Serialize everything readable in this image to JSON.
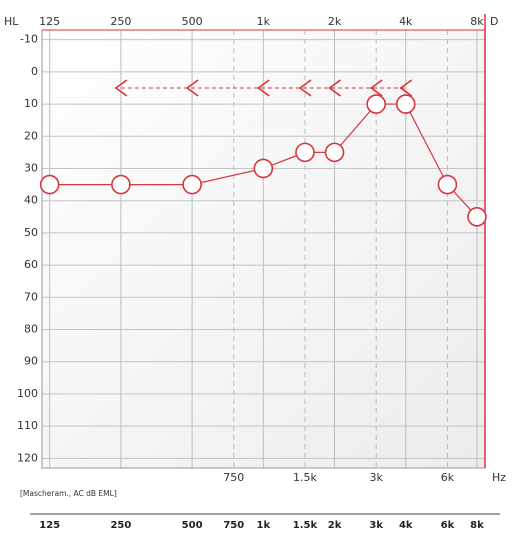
{
  "chart_data": {
    "type": "audiogram",
    "y_axis_label": "HL",
    "side_label": "D",
    "x_unit_label": "Hz",
    "legend_note": "[Mascheram., AC dB EML]",
    "xscale": "log",
    "xlim": [
      116,
      8650
    ],
    "ylim": [
      -13,
      123
    ],
    "y_inverted": true,
    "grid": true,
    "xticks": [
      125,
      250,
      500,
      {
        "value": 1000,
        "label": "1k"
      },
      {
        "value": 2000,
        "label": "2k"
      },
      {
        "value": 4000,
        "label": "4k"
      },
      {
        "value": 8000,
        "label": "8k"
      }
    ],
    "xticks_minor": [
      750,
      {
        "value": 1500,
        "label": "1.5k"
      },
      {
        "value": 3000,
        "label": "3k"
      },
      {
        "value": 6000,
        "label": "6k"
      }
    ],
    "yticks": [
      -10,
      0,
      10,
      20,
      30,
      40,
      50,
      60,
      70,
      80,
      90,
      100,
      110,
      120
    ],
    "series": [
      {
        "color": "#d8353d",
        "marker": "circle",
        "line": "solid",
        "x": [
          125,
          250,
          500,
          1000,
          1500,
          2000,
          3000,
          4000,
          6000,
          8000
        ],
        "values": [
          35,
          35,
          35,
          30,
          25,
          25,
          10,
          10,
          35,
          45
        ]
      },
      {
        "color": "#d8353d",
        "marker": "bracket-left",
        "line": "dashed",
        "x": [
          250,
          500,
          1000,
          1500,
          2000,
          3000,
          4000
        ],
        "values": [
          5,
          5,
          5,
          5,
          5,
          5,
          5
        ]
      }
    ]
  }
}
